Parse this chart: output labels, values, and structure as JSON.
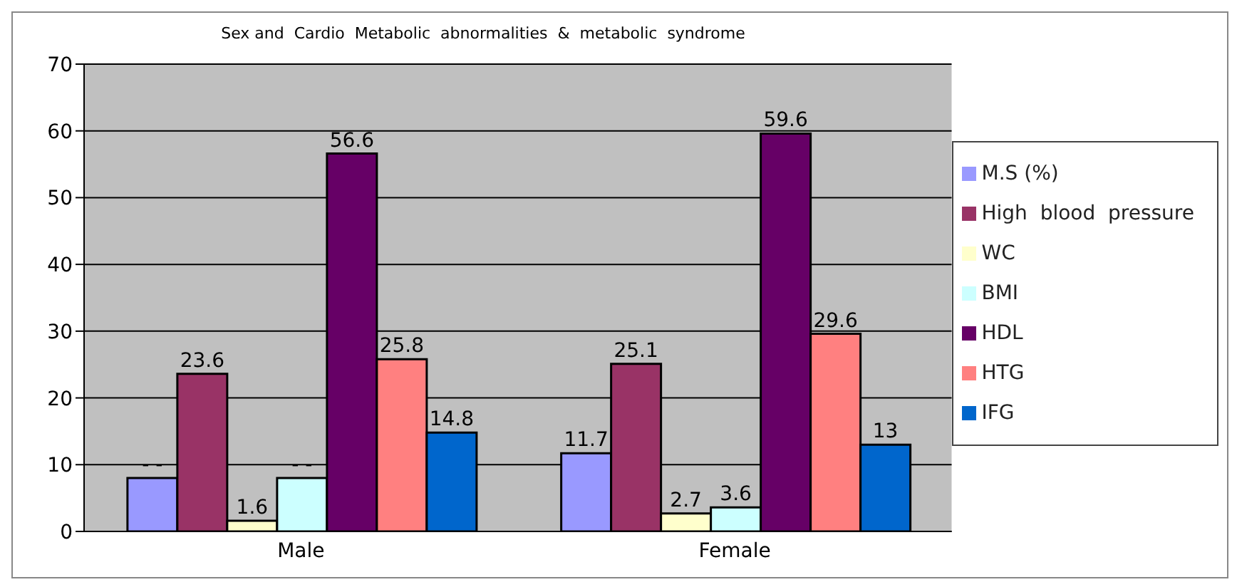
{
  "chart_data": {
    "type": "bar",
    "title": "Sex and  Cardio  Metabolic  abnormalities  &  metabolic  syndrome",
    "categories": [
      "Male",
      "Female"
    ],
    "series": [
      {
        "name": "M.S (%)",
        "color": "#9999ff",
        "values": [
          8,
          11.7
        ],
        "value_labels": [
          "- -",
          "11.7"
        ]
      },
      {
        "name": "High  blood  pressure",
        "color": "#993366",
        "values": [
          23.6,
          25.1
        ],
        "value_labels": [
          "23.6",
          "25.1"
        ]
      },
      {
        "name": "WC",
        "color": "#ffffcc",
        "values": [
          1.6,
          2.7
        ],
        "value_labels": [
          "1.6",
          "2.7"
        ]
      },
      {
        "name": "BMI",
        "color": "#ccffff",
        "values": [
          8,
          3.6
        ],
        "value_labels": [
          "- -",
          "3.6"
        ]
      },
      {
        "name": "HDL",
        "color": "#660066",
        "values": [
          56.6,
          59.6
        ],
        "value_labels": [
          "56.6",
          "59.6"
        ]
      },
      {
        "name": "HTG",
        "color": "#ff8080",
        "values": [
          25.8,
          29.6
        ],
        "value_labels": [
          "25.8",
          "29.6"
        ]
      },
      {
        "name": "IFG",
        "color": "#0066cc",
        "values": [
          14.8,
          13
        ],
        "value_labels": [
          "14.8",
          "13"
        ]
      }
    ],
    "ylim": [
      0,
      70
    ],
    "yticks": [
      0,
      10,
      20,
      30,
      40,
      50,
      60,
      70
    ],
    "grid": "y",
    "legend": "right"
  }
}
